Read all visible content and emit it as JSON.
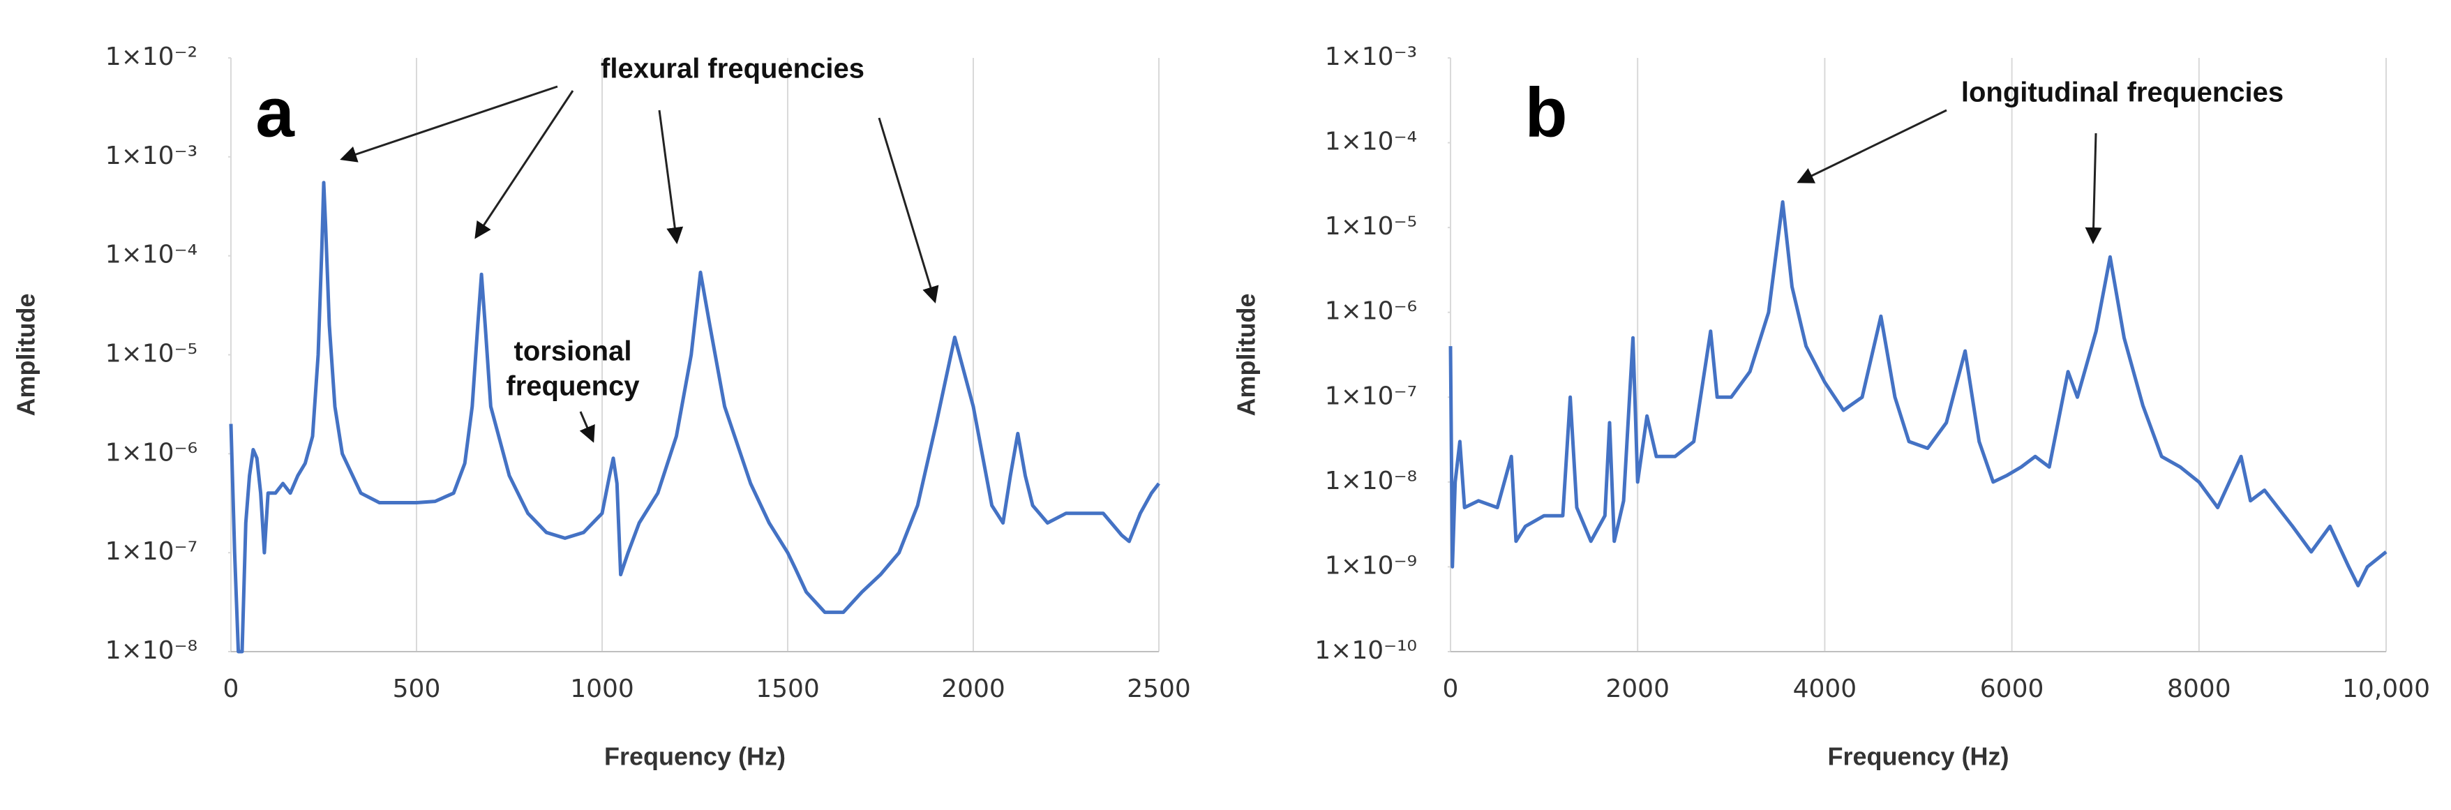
{
  "chart_data": [
    {
      "type": "line",
      "panel_label": "a",
      "xlabel": "Frequency (Hz)",
      "ylabel": "Amplitude",
      "annotations": [
        "flexural frequencies",
        "torsional",
        "frequency"
      ],
      "ylog": true,
      "grid": "x",
      "color": "#4472c4",
      "xlim": [
        0,
        2500
      ],
      "xticks": [
        0,
        500,
        1000,
        1500,
        2000,
        2500
      ],
      "ylim": [
        1e-08,
        0.01
      ],
      "yticks": [
        {
          "value": 1e-08,
          "label": "1×10⁻⁸"
        },
        {
          "value": 1e-07,
          "label": "1×10⁻⁷"
        },
        {
          "value": 1e-06,
          "label": "1×10⁻⁶"
        },
        {
          "value": 1e-05,
          "label": "1×10⁻⁵"
        },
        {
          "value": 0.0001,
          "label": "1×10⁻⁴"
        },
        {
          "value": 0.001,
          "label": "1×10⁻³"
        },
        {
          "value": 0.01,
          "label": "1×10⁻²"
        }
      ],
      "x": [
        0,
        10,
        20,
        30,
        40,
        50,
        60,
        70,
        80,
        90,
        100,
        120,
        140,
        160,
        180,
        200,
        220,
        235,
        245,
        250,
        255,
        265,
        280,
        300,
        350,
        400,
        500,
        550,
        600,
        630,
        650,
        665,
        675,
        685,
        700,
        750,
        800,
        850,
        900,
        950,
        1000,
        1020,
        1030,
        1040,
        1050,
        1070,
        1100,
        1150,
        1200,
        1240,
        1265,
        1290,
        1330,
        1400,
        1450,
        1500,
        1520,
        1550,
        1600,
        1650,
        1700,
        1750,
        1800,
        1850,
        1900,
        1950,
        2000,
        2050,
        2080,
        2100,
        2120,
        2140,
        2160,
        2200,
        2250,
        2300,
        2350,
        2400,
        2420,
        2450,
        2480,
        2500
      ],
      "values": [
        2e-06,
        1e-07,
        1e-08,
        1e-08,
        2e-07,
        6e-07,
        1.1e-06,
        9e-07,
        4e-07,
        1e-07,
        4e-07,
        4e-07,
        5e-07,
        4e-07,
        6e-07,
        8e-07,
        1.5e-06,
        1e-05,
        0.00012,
        0.00055,
        0.0002,
        2e-05,
        3e-06,
        1e-06,
        4e-07,
        3.2e-07,
        3.2e-07,
        3.3e-07,
        4e-07,
        8e-07,
        3e-06,
        2e-05,
        6.5e-05,
        2e-05,
        3e-06,
        6e-07,
        2.5e-07,
        1.6e-07,
        1.4e-07,
        1.6e-07,
        2.5e-07,
        6e-07,
        9e-07,
        5e-07,
        6e-08,
        1e-07,
        2e-07,
        4e-07,
        1.5e-06,
        1e-05,
        6.8e-05,
        2e-05,
        3e-06,
        5e-07,
        2e-07,
        1e-07,
        7e-08,
        4e-08,
        2.5e-08,
        2.5e-08,
        4e-08,
        6e-08,
        1e-07,
        3e-07,
        2e-06,
        1.5e-05,
        3e-06,
        3e-07,
        2e-07,
        6e-07,
        1.6e-06,
        6e-07,
        3e-07,
        2e-07,
        2.5e-07,
        2.5e-07,
        2.5e-07,
        1.5e-07,
        1.3e-07,
        2.5e-07,
        4e-07,
        5e-07
      ]
    },
    {
      "type": "line",
      "panel_label": "b",
      "xlabel": "Frequency (Hz)",
      "ylabel": "Amplitude",
      "annotations": [
        "longitudinal frequencies"
      ],
      "ylog": true,
      "grid": "x",
      "color": "#4472c4",
      "xlim": [
        0,
        10000
      ],
      "xticks": [
        0,
        2000,
        4000,
        6000,
        8000,
        {
          "value": 10000,
          "label": "10,000"
        }
      ],
      "ylim": [
        1e-10,
        0.001
      ],
      "yticks": [
        {
          "value": 1e-10,
          "label": "1×10⁻¹⁰"
        },
        {
          "value": 1e-09,
          "label": "1×10⁻⁹"
        },
        {
          "value": 1e-08,
          "label": "1×10⁻⁸"
        },
        {
          "value": 1e-07,
          "label": "1×10⁻⁷"
        },
        {
          "value": 1e-06,
          "label": "1×10⁻⁶"
        },
        {
          "value": 1e-05,
          "label": "1×10⁻⁵"
        },
        {
          "value": 0.0001,
          "label": "1×10⁻⁴"
        },
        {
          "value": 0.001,
          "label": "1×10⁻³"
        }
      ],
      "x": [
        0,
        20,
        50,
        100,
        150,
        300,
        500,
        650,
        700,
        800,
        1000,
        1200,
        1280,
        1350,
        1500,
        1650,
        1700,
        1750,
        1850,
        1950,
        2000,
        2100,
        2200,
        2400,
        2600,
        2780,
        2850,
        3000,
        3200,
        3400,
        3550,
        3650,
        3800,
        4000,
        4200,
        4400,
        4600,
        4750,
        4900,
        5100,
        5300,
        5500,
        5650,
        5800,
        5950,
        6100,
        6250,
        6400,
        6600,
        6700,
        6900,
        7050,
        7200,
        7400,
        7600,
        7800,
        8000,
        8200,
        8450,
        8550,
        8700,
        9000,
        9200,
        9400,
        9600,
        9700,
        9800,
        10000
      ],
      "values": [
        4e-07,
        1e-09,
        1e-08,
        3e-08,
        5e-09,
        6e-09,
        5e-09,
        2e-08,
        2e-09,
        3e-09,
        4e-09,
        4e-09,
        1e-07,
        5e-09,
        2e-09,
        4e-09,
        5e-08,
        2e-09,
        6e-09,
        5e-07,
        1e-08,
        6e-08,
        2e-08,
        2e-08,
        3e-08,
        6e-07,
        1e-07,
        1e-07,
        2e-07,
        1e-06,
        2e-05,
        2e-06,
        4e-07,
        1.5e-07,
        7e-08,
        1e-07,
        9e-07,
        1e-07,
        3e-08,
        2.5e-08,
        5e-08,
        3.5e-07,
        3e-08,
        1e-08,
        1.2e-08,
        1.5e-08,
        2e-08,
        1.5e-08,
        2e-07,
        1e-07,
        6e-07,
        4.5e-06,
        5e-07,
        8e-08,
        2e-08,
        1.5e-08,
        1e-08,
        5e-09,
        2e-08,
        6e-09,
        8e-09,
        3e-09,
        1.5e-09,
        3e-09,
        1e-09,
        6e-10,
        1e-09,
        1.5e-09
      ]
    }
  ]
}
